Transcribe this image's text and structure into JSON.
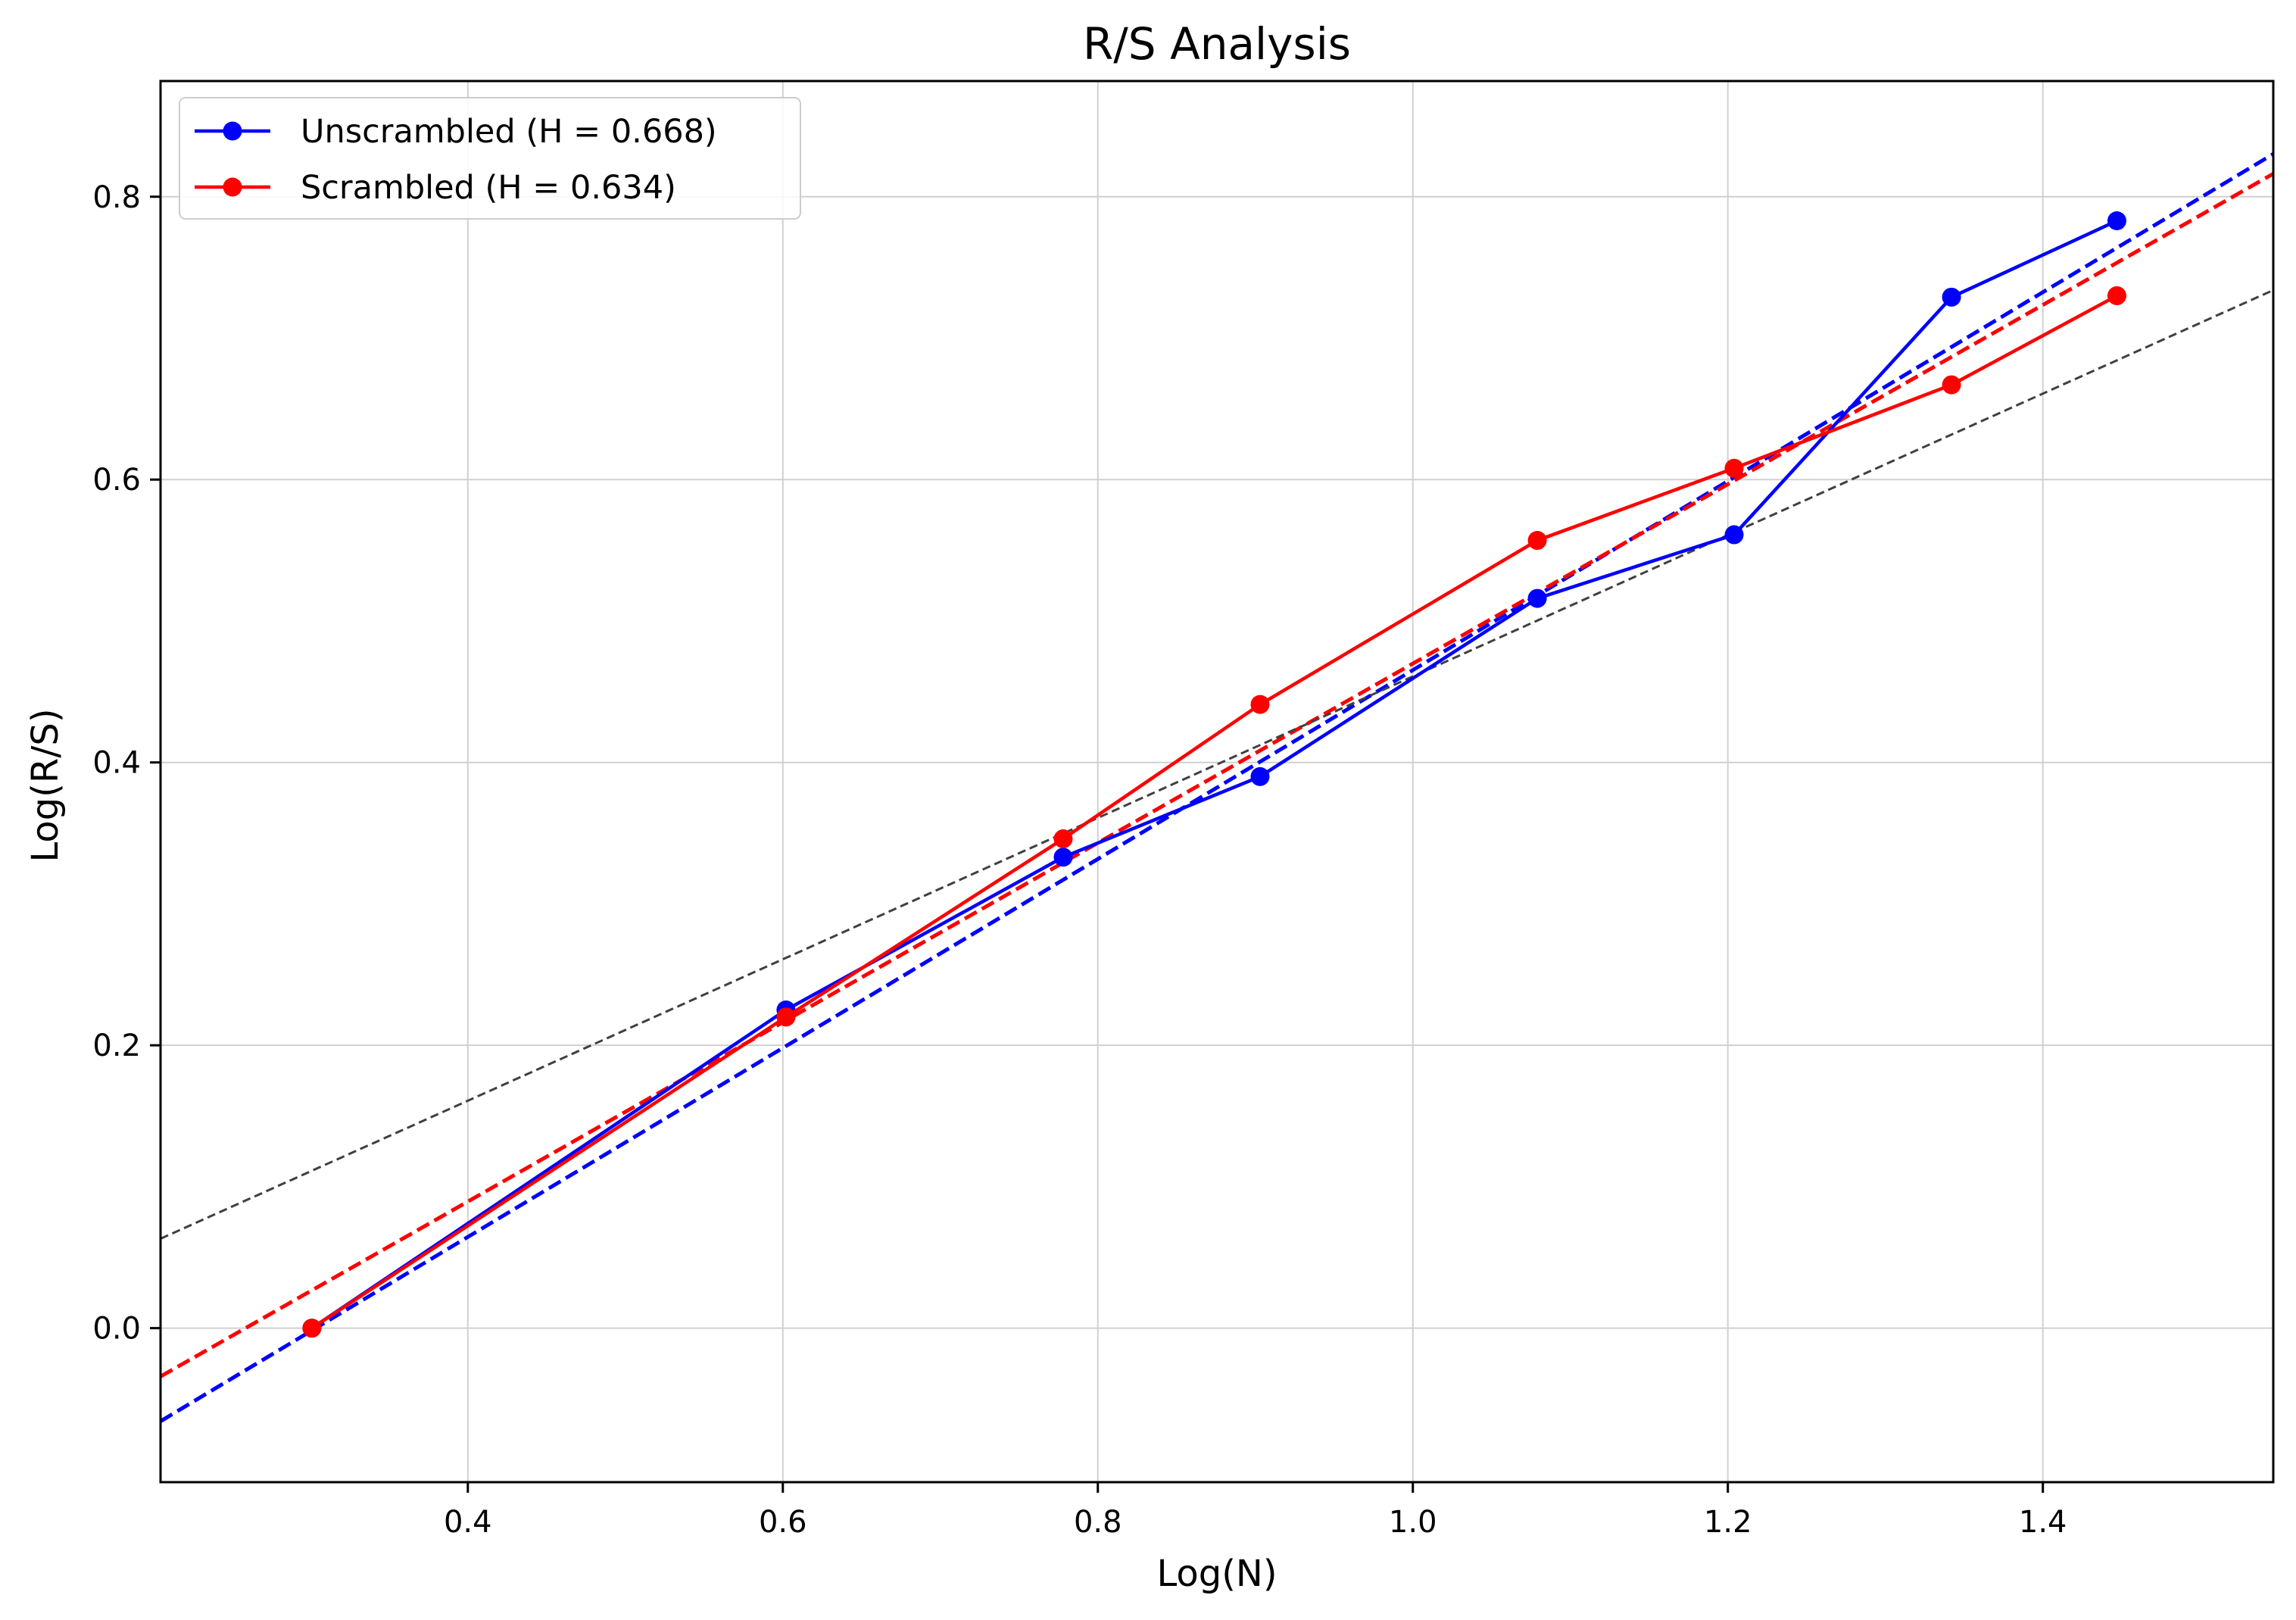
{
  "chart_data": {
    "type": "line",
    "title": "R/S Analysis",
    "xlabel": "Log(N)",
    "ylabel": "Log(R/S)",
    "xlim": [
      0.2049,
      1.5463
    ],
    "ylim": [
      -0.1089,
      0.8818
    ],
    "x_ticks": [
      0.4,
      0.6,
      0.8,
      1.0,
      1.2,
      1.4
    ],
    "x_tick_labels": [
      "0.4",
      "0.6",
      "0.8",
      "1.0",
      "1.2",
      "1.4"
    ],
    "y_ticks": [
      0.0,
      0.2,
      0.4,
      0.6,
      0.8
    ],
    "y_tick_labels": [
      "0.0",
      "0.2",
      "0.4",
      "0.6",
      "0.8"
    ],
    "grid": true,
    "legend_position": "upper-left",
    "series": [
      {
        "name": "Unscrambled (H = 0.668)",
        "color": "#0000ff",
        "marker": "circle",
        "style": "solid",
        "x": [
          0.301,
          0.602,
          0.778,
          0.903,
          1.079,
          1.204,
          1.342,
          1.447
        ],
        "y": [
          0.0,
          0.225,
          0.333,
          0.39,
          0.516,
          0.561,
          0.729,
          0.783
        ]
      },
      {
        "name": "Scrambled (H = 0.634)",
        "color": "#ff0000",
        "marker": "circle",
        "style": "solid",
        "x": [
          0.301,
          0.602,
          0.778,
          0.903,
          1.079,
          1.204,
          1.342,
          1.447
        ],
        "y": [
          0.0,
          0.22,
          0.346,
          0.441,
          0.557,
          0.608,
          0.667,
          0.73
        ]
      }
    ],
    "fit_lines": [
      {
        "color": "#0000ff",
        "style": "dashed",
        "slope": 0.668,
        "intercept": -0.2027
      },
      {
        "color": "#ff0000",
        "style": "dashed",
        "slope": 0.634,
        "intercept": -0.1641
      },
      {
        "color": "#404040",
        "style": "dashed",
        "slope": 0.5,
        "intercept": -0.0392
      }
    ]
  }
}
